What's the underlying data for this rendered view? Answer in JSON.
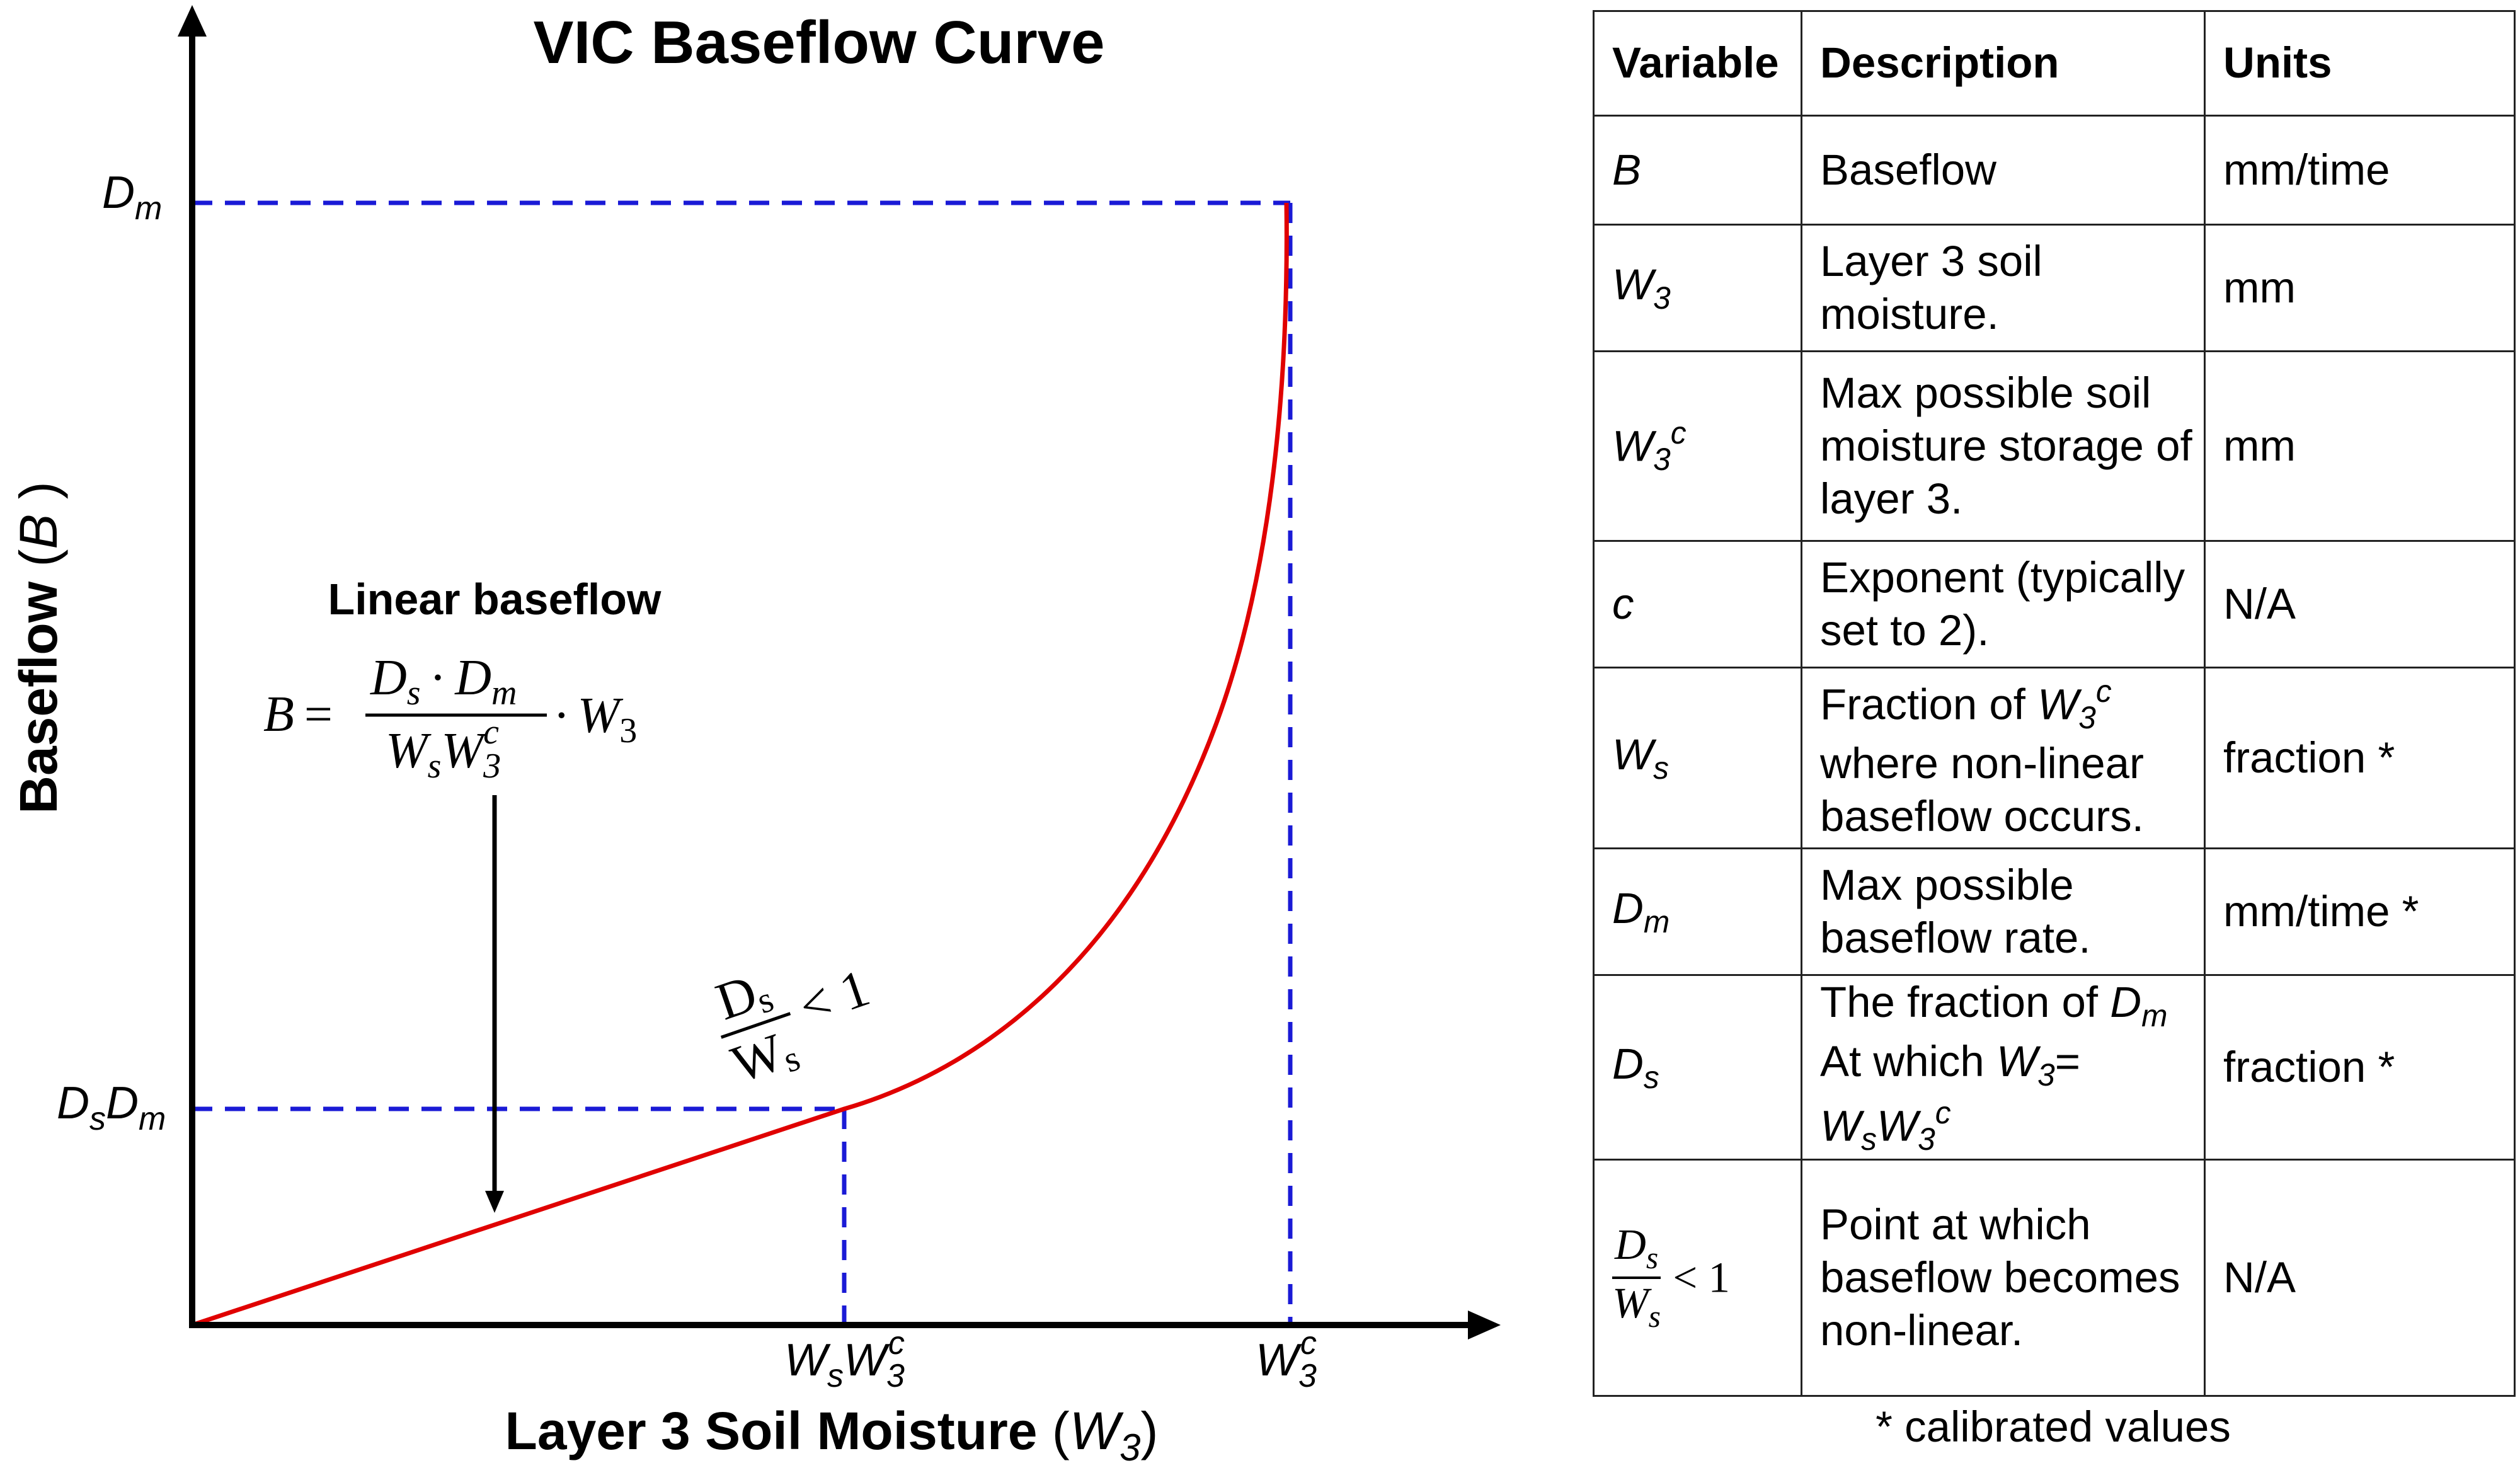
{
  "diagram": {
    "title": "VIC Baseflow Curve",
    "x_axis_label": "Layer 3 Soil Moisture",
    "x_axis_var": "W",
    "x_axis_var_sub": "3",
    "y_axis_label": "Baseflow",
    "y_axis_var": "B",
    "y_tick_dm": {
      "main": "D",
      "sub": "m"
    },
    "y_tick_dsdm": {
      "a": "D",
      "a_sub": "s",
      "b": "D",
      "b_sub": "m"
    },
    "x_tick_wsw3c": {
      "a": "W",
      "a_sub": "s",
      "b": "W",
      "b_sub": "3",
      "b_sup": "c"
    },
    "x_tick_w3c": {
      "a": "W",
      "a_sub": "3",
      "a_sup": "c"
    },
    "linear_label": "Linear baseflow",
    "equation": {
      "lhs": "B",
      "eq": "=",
      "num_a": "D",
      "num_a_sub": "s",
      "num_dot": "·",
      "num_b": "D",
      "num_b_sub": "m",
      "den_a": "W",
      "den_a_sub": "s",
      "den_b": "W",
      "den_b_sub": "3",
      "den_b_sup": "c",
      "rhs_dot": "·",
      "rhs": "W",
      "rhs_sub": "3"
    },
    "threshold": {
      "num": "D",
      "num_sub": "s",
      "den": "W",
      "den_sub": "s",
      "ineq": "< 1"
    },
    "colors": {
      "curve": "#e00000",
      "guides": "#1a1ad6",
      "axes": "#000000"
    }
  },
  "table": {
    "headers": [
      "Variable",
      "Description",
      "Units"
    ],
    "rows": [
      {
        "var": "B",
        "desc": "Baseflow",
        "units": "mm/time"
      },
      {
        "var": "W",
        "var_sub": "3",
        "desc": "Layer 3 soil moisture.",
        "units": "mm"
      },
      {
        "var": "W",
        "var_sub": "3",
        "var_sup": "c",
        "desc": "Max possible soil moisture storage of layer 3.",
        "units": "mm"
      },
      {
        "var": "c",
        "desc": "Exponent (typically set to 2).",
        "units": "N/A"
      },
      {
        "var": "W",
        "var_sub": "s",
        "desc_a": "Fraction of",
        "desc_var": "W",
        "desc_var_sub": "3",
        "desc_var_sup": "c",
        "desc_b": "where non-linear baseflow occurs.",
        "units": "fraction *"
      },
      {
        "var": "D",
        "var_sub": "m",
        "desc": "Max possible baseflow rate.",
        "units": "mm/time *"
      },
      {
        "var": "D",
        "var_sub": "s",
        "desc_a": "The fraction of",
        "desc_var": "D",
        "desc_var_sub": "m",
        "desc_b": "At which",
        "desc_w": "W",
        "desc_w_sub": "3",
        "desc_eq": "=",
        "desc_c": "W",
        "desc_c_sub": "s",
        "desc_d": "W",
        "desc_d_sub": "3",
        "desc_d_sup": "c",
        "units": "fraction *"
      },
      {
        "var_num": "D",
        "var_num_sub": "s",
        "var_den": "W",
        "var_den_sub": "s",
        "var_ineq": "< 1",
        "desc": "Point at which baseflow becomes non-linear.",
        "units": "N/A"
      }
    ],
    "footnote": "* calibrated values"
  }
}
